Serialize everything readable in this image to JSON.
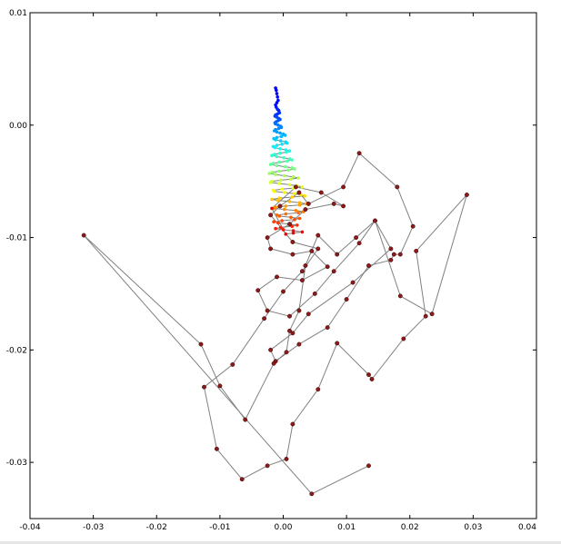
{
  "chart_data": {
    "type": "scatter",
    "title": "",
    "xlabel": "",
    "ylabel": "",
    "xlim": [
      -0.04,
      0.04
    ],
    "ylim": [
      -0.035,
      0.01
    ],
    "xticks": [
      "-0.04",
      "-0.03",
      "-0.02",
      "-0.01",
      "0.00",
      "0.01",
      "0.02",
      "0.03",
      "0.04"
    ],
    "xtick_values": [
      -0.04,
      -0.03,
      -0.02,
      -0.01,
      0.0,
      0.01,
      0.02,
      0.03,
      0.04
    ],
    "yticks": [
      "0.01",
      "0.00",
      "-0.01",
      "-0.02",
      "-0.03"
    ],
    "ytick_values": [
      0.01,
      0.0,
      -0.01,
      -0.02,
      -0.03
    ],
    "grid": false,
    "legend": "none",
    "line_color": "#808080",
    "colormap": "jet",
    "series": [
      {
        "values_note_x": "x",
        "x": [
          -0.0012,
          -0.0011,
          -0.001,
          -0.0009,
          -0.0008,
          -0.001,
          -0.0012,
          -0.0011,
          -0.0009,
          -0.0007,
          -0.0006,
          -0.0009,
          -0.0012,
          -0.0013,
          -0.001,
          -0.0007,
          -0.0005,
          -0.0008,
          -0.0011,
          -0.0013,
          -0.0012,
          -0.0008,
          -0.0004,
          -0.0003,
          -0.0007,
          -0.0012,
          -0.0014,
          -0.001,
          -0.0005,
          0.0,
          0.0003,
          -0.0003,
          -0.001,
          -0.0015,
          -0.0012,
          -0.0004,
          0.0004,
          0.0006,
          -0.0002,
          -0.001,
          -0.0016,
          -0.0013,
          -0.0005,
          0.0004,
          0.001,
          0.0005,
          -0.0005,
          -0.0014,
          -0.0018,
          -0.001,
          0.0001,
          0.001,
          0.0014,
          0.0006,
          -0.0006,
          -0.0016,
          -0.002,
          -0.001,
          0.0003,
          0.0014,
          0.0018,
          0.0008,
          -0.0006,
          -0.0017,
          -0.0022,
          -0.0012,
          0.0002,
          0.0016,
          0.0024,
          0.0012,
          -0.0004,
          -0.0018,
          -0.002,
          -0.0006,
          0.001,
          0.0022,
          0.003,
          0.0016,
          -0.0002,
          -0.0016,
          -0.0014,
          0.0002,
          0.0018,
          0.0028,
          0.0034,
          0.0014,
          -0.0006,
          -0.0018,
          -0.0008,
          0.001,
          0.0026,
          0.0036,
          0.0026,
          0.0004,
          -0.0012,
          -0.0014,
          0.0002,
          0.002,
          0.0032,
          0.0024,
          0.0004,
          -0.001,
          -0.0006,
          0.0012,
          0.0026,
          0.0018,
          -0.0002,
          -0.0015,
          -0.0008,
          0.001,
          0.0022,
          0.0014,
          -0.0004,
          -0.0012,
          0.0,
          0.0016,
          0.003,
          0.0016,
          0.0004,
          -0.0018,
          0.002,
          0.006,
          0.0095,
          0.008,
          0.0035,
          0.001,
          -0.0025,
          -0.002,
          0.0015,
          0.0045,
          0.007,
          0.003,
          -0.001,
          -0.004,
          -0.0025,
          0.001,
          0.005,
          0.008,
          0.012,
          0.0145,
          0.017,
          0.011,
          0.004,
          0.0015,
          -0.002,
          -0.0012,
          0.0025,
          0.007,
          0.01,
          0.0135,
          0.017,
          0.0175,
          0.0185,
          0.0205,
          0.018,
          0.012,
          0.0095,
          0.004,
          0.0025,
          -0.0005,
          -0.002,
          0.0015,
          0.0055,
          0.003,
          0.0,
          -0.003,
          -0.008,
          -0.0125,
          -0.0105,
          -0.0065,
          -0.0025,
          0.0005,
          0.0015,
          0.0055,
          0.0085,
          0.0135,
          0.014,
          0.019,
          0.0225,
          0.021,
          0.029,
          0.0235,
          0.0185,
          0.0145,
          0.0115,
          0.0085,
          0.0055,
          0.0035,
          0.0025,
          0.001,
          0.0005,
          -0.0015,
          -0.006,
          -0.01,
          -0.013,
          -0.0315,
          0.0045,
          0.0135
        ],
        "y": [
          0.0033,
          0.0031,
          0.0028,
          0.0025,
          0.0022,
          0.002,
          0.0018,
          0.0016,
          0.0014,
          0.0013,
          0.0011,
          0.001,
          0.0009,
          0.0008,
          0.0007,
          0.0006,
          0.0005,
          0.0004,
          0.0003,
          0.0002,
          0.0001,
          0.0,
          -0.0001,
          -0.0002,
          -0.0003,
          -0.0004,
          -0.0005,
          -0.0006,
          -0.0007,
          -0.0008,
          -0.0009,
          -0.001,
          -0.0011,
          -0.0012,
          -0.0013,
          -0.0014,
          -0.0015,
          -0.0016,
          -0.0017,
          -0.0018,
          -0.0019,
          -0.002,
          -0.0021,
          -0.0022,
          -0.0023,
          -0.0024,
          -0.0025,
          -0.0026,
          -0.0027,
          -0.0028,
          -0.0029,
          -0.003,
          -0.0031,
          -0.0032,
          -0.0033,
          -0.0034,
          -0.0035,
          -0.0036,
          -0.0037,
          -0.0038,
          -0.0039,
          -0.004,
          -0.0041,
          -0.0042,
          -0.0043,
          -0.0044,
          -0.0045,
          -0.0046,
          -0.0047,
          -0.0048,
          -0.0049,
          -0.005,
          -0.0051,
          -0.0052,
          -0.0053,
          -0.0054,
          -0.0055,
          -0.0056,
          -0.0057,
          -0.0058,
          -0.0059,
          -0.006,
          -0.0061,
          -0.0062,
          -0.0063,
          -0.0064,
          -0.0065,
          -0.0066,
          -0.0067,
          -0.0068,
          -0.0069,
          -0.007,
          -0.0071,
          -0.0072,
          -0.0073,
          -0.0074,
          -0.0075,
          -0.0076,
          -0.0077,
          -0.0078,
          -0.0079,
          -0.008,
          -0.0081,
          -0.0082,
          -0.0083,
          -0.0084,
          -0.0085,
          -0.0086,
          -0.0087,
          -0.0088,
          -0.0089,
          -0.009,
          -0.0091,
          -0.0092,
          -0.0093,
          -0.0094,
          -0.0095,
          -0.0096,
          -0.0097,
          -0.0074,
          -0.0055,
          -0.006,
          -0.0072,
          -0.007,
          -0.0075,
          -0.0088,
          -0.01,
          -0.011,
          -0.0115,
          -0.0112,
          -0.0126,
          -0.0138,
          -0.0135,
          -0.0147,
          -0.0165,
          -0.017,
          -0.015,
          -0.013,
          -0.0105,
          -0.0085,
          -0.011,
          -0.014,
          -0.0168,
          -0.0185,
          -0.02,
          -0.021,
          -0.0195,
          -0.018,
          -0.0155,
          -0.0125,
          -0.012,
          -0.0115,
          -0.0115,
          -0.009,
          -0.0055,
          -0.0025,
          -0.0055,
          -0.007,
          -0.006,
          -0.0072,
          -0.008,
          -0.0104,
          -0.011,
          -0.013,
          -0.0148,
          -0.0172,
          -0.0213,
          -0.0233,
          -0.0288,
          -0.0315,
          -0.0303,
          -0.0297,
          -0.0266,
          -0.0235,
          -0.0194,
          -0.0222,
          -0.0226,
          -0.019,
          -0.017,
          -0.0112,
          -0.0062,
          -0.0168,
          -0.0152,
          -0.0085,
          -0.01,
          -0.0115,
          -0.0098,
          -0.0125,
          -0.0165,
          -0.0183,
          -0.0202,
          -0.0212,
          -0.0262,
          -0.0232,
          -0.0195,
          -0.0098,
          -0.0328,
          -0.0303
        ]
      }
    ]
  }
}
